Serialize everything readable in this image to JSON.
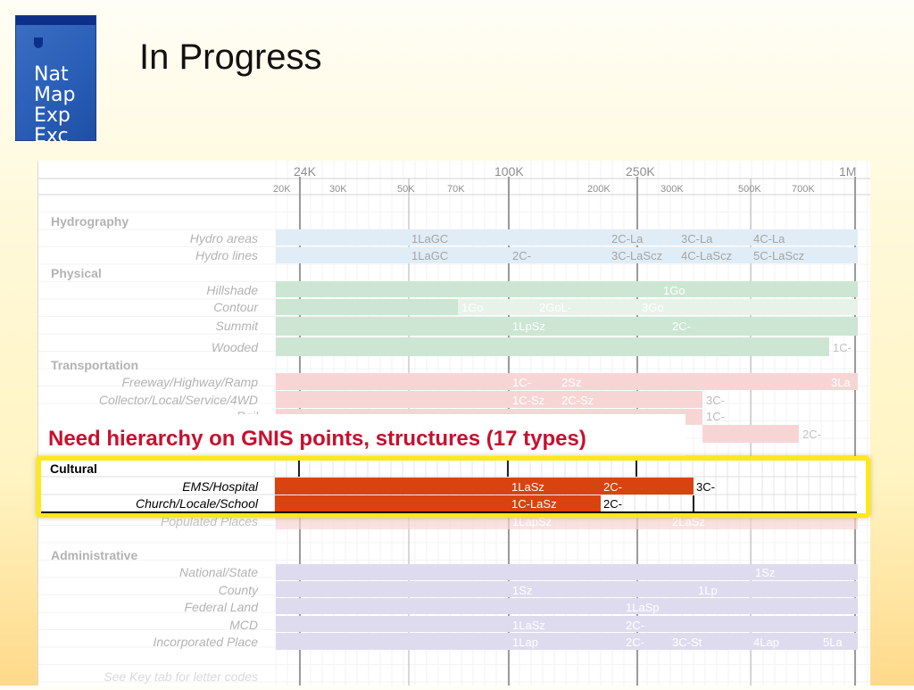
{
  "logo": {
    "lines": [
      "Nat",
      "Map",
      "Exp",
      "Exc"
    ]
  },
  "title": "In Progress",
  "header": {
    "top_scales": [
      "24K",
      "100K",
      "250K",
      "1M"
    ],
    "sub_scales": [
      "20K",
      "30K",
      "50K",
      "70K",
      "200K",
      "300K",
      "500K",
      "700K"
    ]
  },
  "sections": {
    "hydrography": "Hydrography",
    "physical": "Physical",
    "transportation": "Transportation",
    "cultural": "Cultural",
    "administrative": "Administrative"
  },
  "rows": {
    "hydro_areas": "Hydro areas",
    "hydro_lines": "Hydro lines",
    "hillshade": "Hillshade",
    "contour": "Contour",
    "summit": "Summit",
    "wooded": "Wooded",
    "freeway": "Freeway/Highway/Ramp",
    "collector": "Collector/Local/Service/4WD",
    "rail": "Rail",
    "ems": "EMS/Hospital",
    "church": "Church/Locale/School",
    "populated": "Populated Places",
    "national": "National/State",
    "county": "County",
    "federal": "Federal Land",
    "mcd": "MCD",
    "incorporated": "Incorporated Place"
  },
  "codes": {
    "hydro_areas": [
      "1LaGC",
      "2C-La",
      "3C-La",
      "4C-La"
    ],
    "hydro_lines": [
      "1LaGC",
      "2C-",
      "3C-LaScz",
      "4C-LaScz",
      "5C-LaScz"
    ],
    "hillshade": [
      "1Go"
    ],
    "contour": [
      "1Go",
      "2GoL-",
      "3Go"
    ],
    "summit": [
      "1LpSz",
      "2C-"
    ],
    "wooded": [
      "1C-"
    ],
    "freeway": [
      "1C-",
      "2Sz",
      "3La"
    ],
    "collector": [
      "1C-Sz",
      "2C-Sz",
      "3C-"
    ],
    "rail": [
      "1C-"
    ],
    "rail_extra": "2C-",
    "ems": [
      "1LaSz",
      "2C-",
      "3C-"
    ],
    "church": [
      "1C-LaSz",
      "2C-"
    ],
    "populated": [
      "1LapSz",
      "2LaSz"
    ],
    "national": [
      "1Sz"
    ],
    "county": [
      "1Sz",
      "1Lp"
    ],
    "federal": [
      "1LaSp"
    ],
    "mcd": [
      "1LaSz",
      "2C-"
    ],
    "incorporated": [
      "1Lap",
      "2C-",
      "3C-St",
      "4Lap",
      "5La"
    ]
  },
  "footer_note": "See Key tab for letter codes",
  "callout": "Need hierarchy on GNIS points, structures (17 types)",
  "colors": {
    "hydro": "#bcd8ec",
    "physical": "#8fc89e",
    "physical_light": "#c9e5cf",
    "transport": "#f0a3a3",
    "cultural": "#d9430f",
    "admin": "#b6b0dc",
    "callout_text": "#c8102e",
    "highlight": "#ffe81a"
  }
}
